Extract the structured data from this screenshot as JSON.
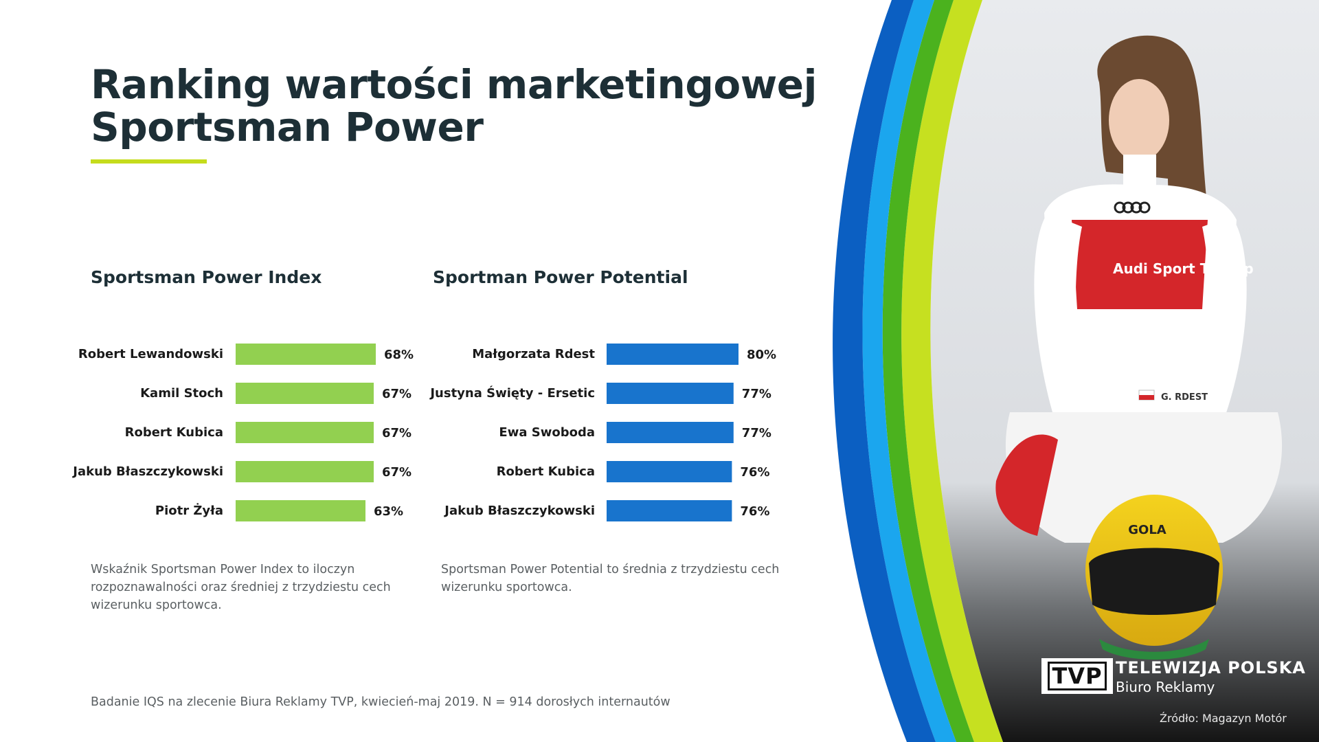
{
  "header": {
    "title_line1": "Ranking wartości marketingowej",
    "title_line2": "Sportsman Power"
  },
  "colors": {
    "title": "#1d2f36",
    "underline": "#c5dc1c",
    "index_bars": "#92d050",
    "potential_bars": "#1874cd",
    "curve_dark_blue": "#0b5fc2",
    "curve_light_blue": "#1ba6ee",
    "curve_green": "#4bb21e",
    "curve_lime": "#c6e020"
  },
  "chart_data": [
    {
      "type": "bar",
      "orientation": "horizontal",
      "title": "Sportsman Power Index",
      "categories": [
        "Robert Lewandowski",
        "Kamil Stoch",
        "Robert Kubica",
        "Jakub Błaszczykowski",
        "Piotr Żyła"
      ],
      "values": [
        68,
        67,
        67,
        67,
        63
      ],
      "value_labels": [
        "68%",
        "67%",
        "67%",
        "67%",
        "63%"
      ],
      "unit": "%",
      "grid": false,
      "legend": "none"
    },
    {
      "type": "bar",
      "orientation": "horizontal",
      "title": "Sportman Power Potential",
      "categories": [
        "Małgorzata Rdest",
        "Justyna Święty - Ersetic",
        "Ewa Swoboda",
        "Robert Kubica",
        "Jakub Błaszczykowski"
      ],
      "values": [
        80,
        77,
        77,
        76,
        76
      ],
      "value_labels": [
        "80%",
        "77%",
        "77%",
        "76%",
        "76%"
      ],
      "unit": "%",
      "grid": false,
      "legend": "none"
    }
  ],
  "descriptions": {
    "index": [
      "Wskaźnik Sportsman Power Index to iloczyn",
      "rozpoznawalności oraz średniej z trzydziestu cech",
      "wizerunku sportowca."
    ],
    "potential": [
      "Sportsman Power Potential to średnia z trzydziestu cech",
      "wizerunku sportowca."
    ]
  },
  "footer": {
    "note": "Badanie IQS na zlecenie Biura Reklamy TVP, kwiecień-maj 2019. N = 914 dorosłych internautów"
  },
  "photo": {
    "suit_name_tag": "G. RDEST",
    "suit_text": "Audi Sport TT Cup",
    "helmet_text": "GOLA",
    "source": "Źródło: Magazyn Motór"
  },
  "brand": {
    "logo": "TVP",
    "name": "TELEWIZJA POLSKA",
    "subtitle": "Biuro Reklamy"
  },
  "icons": [
    "tvp-logo-icon",
    "audi-rings-icon",
    "poland-flag-icon"
  ]
}
